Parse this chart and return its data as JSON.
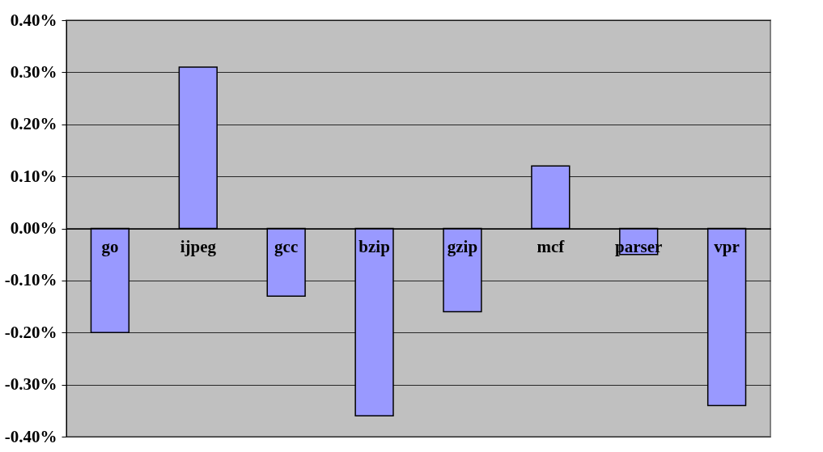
{
  "chart_data": {
    "type": "bar",
    "categories": [
      "go",
      "ijpeg",
      "gcc",
      "bzip",
      "gzip",
      "mcf",
      "parser",
      "vpr"
    ],
    "values": [
      -0.2,
      0.31,
      -0.13,
      -0.36,
      -0.16,
      0.12,
      -0.05,
      -0.34
    ],
    "color": "#9999ff",
    "ylim": [
      -0.4,
      0.4
    ],
    "yticks": [
      {
        "value": -0.4,
        "label": "-0.40%"
      },
      {
        "value": -0.3,
        "label": "-0.30%"
      },
      {
        "value": -0.2,
        "label": "-0.20%"
      },
      {
        "value": -0.1,
        "label": "-0.10%"
      },
      {
        "value": 0,
        "label": "0.00%"
      },
      {
        "value": 0.1,
        "label": "0.10%"
      },
      {
        "value": 0.2,
        "label": "0.20%"
      },
      {
        "value": 0.3,
        "label": "0.30%"
      },
      {
        "value": 0.4,
        "label": "0.40%"
      }
    ],
    "grid": "y"
  }
}
